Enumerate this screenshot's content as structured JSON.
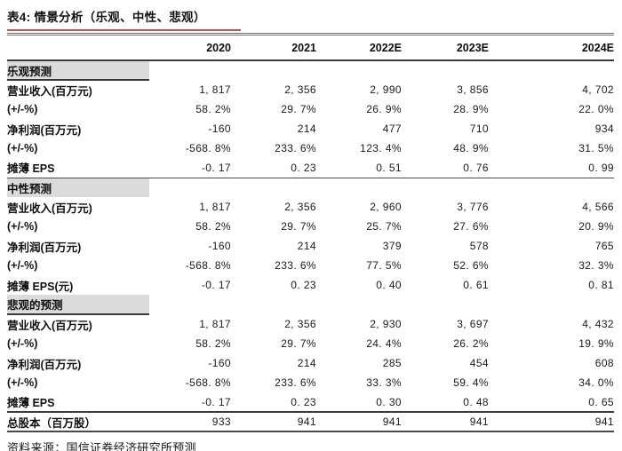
{
  "title": "表4: 情景分析（乐观、中性、悲观）",
  "source": "资料来源：国信证券经济研究所预测",
  "columns": [
    "2020",
    "2021",
    "2022E",
    "2023E",
    "2024E"
  ],
  "sections": [
    {
      "name": "乐观预测",
      "rows": [
        {
          "label": "营业收入(百万元)",
          "values": [
            "1, 817",
            "2, 356",
            "2, 990",
            "3, 856",
            "4, 702"
          ]
        },
        {
          "label": "(+/-%)",
          "values": [
            "58. 2%",
            "29. 7%",
            "26. 9%",
            "28. 9%",
            "22. 0%"
          ]
        },
        {
          "label": "净利润(百万元)",
          "values": [
            "-160",
            "214",
            "477",
            "710",
            "934"
          ]
        },
        {
          "label": "(+/-%)",
          "values": [
            "-568. 8%",
            "233. 6%",
            "123. 4%",
            "48. 9%",
            "31. 5%"
          ]
        },
        {
          "label": "摊薄 EPS",
          "values": [
            "-0. 17",
            "0. 23",
            "0. 51",
            "0. 76",
            "0. 99"
          ]
        }
      ]
    },
    {
      "name": "中性预测",
      "rows": [
        {
          "label": "营业收入(百万元)",
          "values": [
            "1, 817",
            "2, 356",
            "2, 960",
            "3, 776",
            "4, 566"
          ]
        },
        {
          "label": "(+/-%)",
          "values": [
            "58. 2%",
            "29. 7%",
            "25. 7%",
            "27. 6%",
            "20. 9%"
          ]
        },
        {
          "label": "净利润(百万元)",
          "values": [
            "-160",
            "214",
            "379",
            "578",
            "765"
          ]
        },
        {
          "label": "(+/-%)",
          "values": [
            "-568. 8%",
            "233. 6%",
            "77. 5%",
            "52. 6%",
            "32. 3%"
          ]
        },
        {
          "label": "摊薄 EPS(元)",
          "values": [
            "-0. 17",
            "0. 23",
            "0. 40",
            "0. 61",
            "0. 81"
          ]
        }
      ]
    },
    {
      "name": "悲观的预测",
      "rows": [
        {
          "label": "营业收入(百万元)",
          "values": [
            "1, 817",
            "2, 356",
            "2, 930",
            "3, 697",
            "4, 432"
          ]
        },
        {
          "label": "(+/-%)",
          "values": [
            "58. 2%",
            "29. 7%",
            "24. 4%",
            "26. 2%",
            "19. 9%"
          ]
        },
        {
          "label": "净利润(百万元)",
          "values": [
            "-160",
            "214",
            "285",
            "454",
            "608"
          ]
        },
        {
          "label": "(+/-%)",
          "values": [
            "-568. 8%",
            "233. 6%",
            "33. 3%",
            "59. 4%",
            "34. 0%"
          ]
        },
        {
          "label": "摊薄 EPS",
          "values": [
            "-0. 17",
            "0. 23",
            "0. 30",
            "0. 48",
            "0. 65"
          ]
        }
      ]
    }
  ],
  "total_row": {
    "label": "总股本（百万股）",
    "values": [
      "933",
      "941",
      "941",
      "941",
      "941"
    ]
  },
  "colors": {
    "accent_red": "#c0504d",
    "section_bg": "#dbdbdb",
    "rule_dark": "#3b3b3b",
    "text": "#141414"
  }
}
